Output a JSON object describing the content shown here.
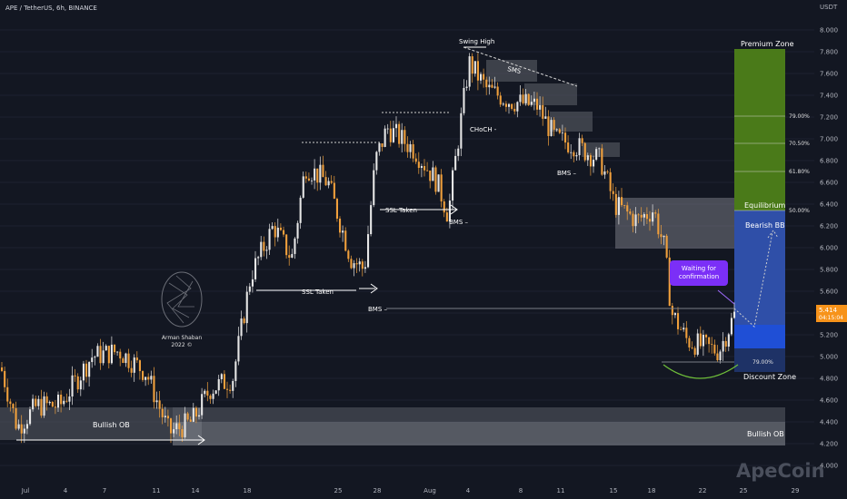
{
  "header": {
    "symbol_line": "APE / TetherUS, 6h, BINANCE"
  },
  "watermark": "ApeCoin",
  "logo_text": {
    "line1": "Arman Shaban",
    "line2": "2022 ©"
  },
  "colors": {
    "background": "#131722",
    "up": "#e6e6e6",
    "down": "#f0a03c",
    "green_zone": "#4a7a19",
    "blue_zone": "#2f4fa8",
    "price_tag": "#f7931a",
    "note": "#7b2ff7"
  },
  "chart_data": {
    "type": "candlestick",
    "y_axis": {
      "unit": "USDT",
      "min": 4.0,
      "max": 8.2,
      "ticks": [
        "8.200",
        "8.000",
        "7.800",
        "7.600",
        "7.400",
        "7.200",
        "7.000",
        "6.800",
        "6.600",
        "6.400",
        "6.200",
        "6.000",
        "5.800",
        "5.600",
        "5.400",
        "5.200",
        "5.000",
        "4.800",
        "4.600",
        "4.400",
        "4.200",
        "4.000"
      ]
    },
    "x_axis": {
      "ticks": [
        "Jul",
        "4",
        "7",
        "11",
        "14",
        "18",
        "25",
        "28",
        "Aug",
        "4",
        "8",
        "11",
        "15",
        "18",
        "22",
        "25",
        "29"
      ]
    },
    "last_price": {
      "value": "5.414",
      "countdown": "04:15:04"
    },
    "annotations": {
      "swing_high": "Swing High",
      "sms": "SMS",
      "choch": "CHoCH -",
      "bms": "BMS",
      "bms_dash": "BMS –",
      "ssl_taken": "SSL Taken",
      "bullish_ob": "Bullish OB",
      "premium_zone": "Premium Zone",
      "equilibrium": "Equilibrium",
      "bearish_bb": "Bearish BB",
      "discount_zone": "Discount Zone",
      "note": "Waiting for confirmation"
    },
    "fib_levels": [
      "79.00%",
      "70.50%",
      "61.80%",
      "50.00%",
      "79.00%"
    ]
  }
}
